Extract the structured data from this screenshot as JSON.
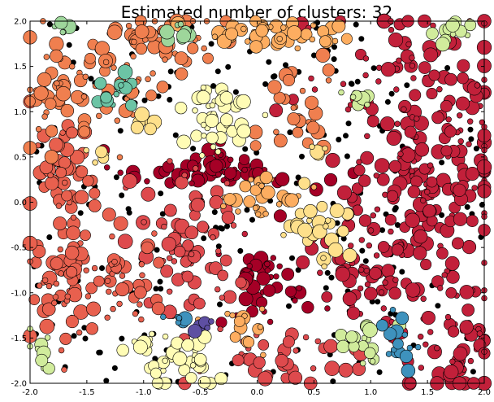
{
  "chart_data": {
    "type": "scatter",
    "title": "Estimated number of clusters: 32",
    "xlabel": "",
    "ylabel": "",
    "xlim": [
      -2.0,
      2.0
    ],
    "ylim": [
      -2.0,
      2.0
    ],
    "xticks": [
      "-2.0",
      "-1.5",
      "-1.0",
      "-0.5",
      "0.0",
      "0.5",
      "1.0",
      "1.5",
      "2.0"
    ],
    "yticks": [
      "2.0",
      "1.5",
      "1.0",
      "0.5",
      "0.0",
      "-0.5",
      "-1.0",
      "-1.5",
      "-2.0"
    ],
    "grid": false,
    "legend": "none",
    "noise_color": "#000000",
    "clusters": [
      {
        "color": "#a50026",
        "cx": 0.1,
        "cy": -0.9,
        "sx": 0.18,
        "sy": 0.25,
        "n": 45
      },
      {
        "color": "#a50026",
        "cx": -0.4,
        "cy": 0.35,
        "sx": 0.45,
        "sy": 0.1,
        "n": 60
      },
      {
        "color": "#c2203a",
        "cx": 1.5,
        "cy": 0.2,
        "sx": 0.4,
        "sy": 0.65,
        "n": 190
      },
      {
        "color": "#c2203a",
        "cx": 0.9,
        "cy": -0.8,
        "sx": 0.25,
        "sy": 0.25,
        "n": 50
      },
      {
        "color": "#c2203a",
        "cx": 1.65,
        "cy": -1.55,
        "sx": 0.25,
        "sy": 0.35,
        "n": 60
      },
      {
        "color": "#c2203a",
        "cx": 1.5,
        "cy": 1.6,
        "sx": 0.4,
        "sy": 0.3,
        "n": 60
      },
      {
        "color": "#de4a4d",
        "cx": -0.6,
        "cy": -0.5,
        "sx": 0.25,
        "sy": 0.5,
        "n": 80
      },
      {
        "color": "#de4a4d",
        "cx": 0.25,
        "cy": -1.7,
        "sx": 0.3,
        "sy": 0.15,
        "n": 40
      },
      {
        "color": "#e8604e",
        "cx": -1.75,
        "cy": -0.8,
        "sx": 0.18,
        "sy": 0.35,
        "n": 55
      },
      {
        "color": "#e8604e",
        "cx": -1.7,
        "cy": 0.25,
        "sx": 0.15,
        "sy": 0.35,
        "n": 55
      },
      {
        "color": "#e8604e",
        "cx": -1.2,
        "cy": -0.8,
        "sx": 0.2,
        "sy": 0.3,
        "n": 45
      },
      {
        "color": "#f07f4f",
        "cx": -1.8,
        "cy": 1.2,
        "sx": 0.15,
        "sy": 0.3,
        "n": 40
      },
      {
        "color": "#f07f4f",
        "cx": -0.85,
        "cy": 1.8,
        "sx": 0.25,
        "sy": 0.2,
        "n": 50
      },
      {
        "color": "#f07f4f",
        "cx": -1.25,
        "cy": 1.3,
        "sx": 0.2,
        "sy": 0.3,
        "n": 35
      },
      {
        "color": "#f07f4f",
        "cx": 0.35,
        "cy": 1.05,
        "sx": 0.15,
        "sy": 0.3,
        "n": 30
      },
      {
        "color": "#fdad60",
        "cx": 0.1,
        "cy": 1.85,
        "sx": 0.35,
        "sy": 0.1,
        "n": 45
      },
      {
        "color": "#fdad60",
        "cx": 0.05,
        "cy": 0.05,
        "sx": 0.2,
        "sy": 0.12,
        "n": 30
      },
      {
        "color": "#fdad60",
        "cx": -0.2,
        "cy": -1.45,
        "sx": 0.15,
        "sy": 0.2,
        "n": 15
      },
      {
        "color": "#fee08b",
        "cx": 0.5,
        "cy": -0.35,
        "sx": 0.15,
        "sy": 0.2,
        "n": 30
      },
      {
        "color": "#fee08b",
        "cx": -1.38,
        "cy": 0.55,
        "sx": 0.06,
        "sy": 0.06,
        "n": 5
      },
      {
        "color": "#fee08b",
        "cx": -1.0,
        "cy": 0.85,
        "sx": 0.05,
        "sy": 0.06,
        "n": 6
      },
      {
        "color": "#fee08b",
        "cx": 0.55,
        "cy": 0.55,
        "sx": 0.04,
        "sy": 0.05,
        "n": 4
      },
      {
        "color": "#fffcb5",
        "cx": -0.4,
        "cy": 0.95,
        "sx": 0.15,
        "sy": 0.2,
        "n": 40
      },
      {
        "color": "#fffcb5",
        "cx": -0.75,
        "cy": -1.75,
        "sx": 0.18,
        "sy": 0.15,
        "n": 40
      },
      {
        "color": "#fffcb5",
        "cx": -1.05,
        "cy": -1.55,
        "sx": 0.06,
        "sy": 0.05,
        "n": 5
      },
      {
        "color": "#d1ec9c",
        "cx": 0.95,
        "cy": -1.55,
        "sx": 0.12,
        "sy": 0.14,
        "n": 20
      },
      {
        "color": "#d1ec9c",
        "cx": 1.75,
        "cy": 1.9,
        "sx": 0.12,
        "sy": 0.08,
        "n": 14
      },
      {
        "color": "#d1ec9c",
        "cx": -1.9,
        "cy": -1.7,
        "sx": 0.08,
        "sy": 0.12,
        "n": 10
      },
      {
        "color": "#d1ec9c",
        "cx": 0.9,
        "cy": 1.15,
        "sx": 0.06,
        "sy": 0.06,
        "n": 8
      },
      {
        "color": "#9ed69b",
        "cx": -0.65,
        "cy": 1.9,
        "sx": 0.08,
        "sy": 0.05,
        "n": 8
      },
      {
        "color": "#9ed69b",
        "cx": -1.75,
        "cy": 1.95,
        "sx": 0.06,
        "sy": 0.05,
        "n": 6
      },
      {
        "color": "#6cc4a5",
        "cx": -1.25,
        "cy": 1.2,
        "sx": 0.1,
        "sy": 0.1,
        "n": 14
      },
      {
        "color": "#3e92bd",
        "cx": 1.25,
        "cy": -1.5,
        "sx": 0.08,
        "sy": 0.2,
        "n": 15
      },
      {
        "color": "#3e92bd",
        "cx": -0.7,
        "cy": -1.3,
        "sx": 0.08,
        "sy": 0.05,
        "n": 8
      },
      {
        "color": "#5e4fa2",
        "cx": -0.45,
        "cy": -1.35,
        "sx": 0.06,
        "sy": 0.05,
        "n": 5
      }
    ],
    "noise_points": 230
  }
}
